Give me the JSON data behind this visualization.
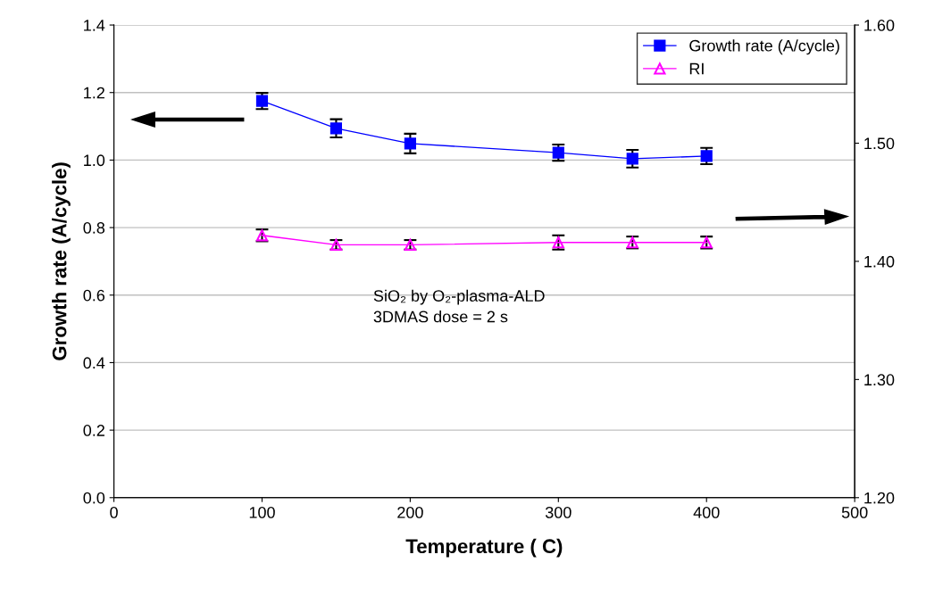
{
  "chart_data": {
    "type": "line",
    "xlabel": "Temperature ( C)",
    "ylabel": "Growth rate (A/cycle)",
    "x": [
      100,
      150,
      200,
      300,
      350,
      400
    ],
    "series": [
      {
        "name": "Growth rate (A/cycle)",
        "color": "#0000ff",
        "marker": "square",
        "values": [
          1.175,
          1.094,
          1.049,
          1.022,
          1.004,
          1.012
        ],
        "errors": [
          0.024,
          0.027,
          0.029,
          0.024,
          0.026,
          0.024
        ]
      },
      {
        "name": "RI",
        "color": "#ff00ff",
        "marker": "triangle",
        "axis": "y2",
        "values": [
          1.422,
          1.414,
          1.414,
          1.416,
          1.416,
          1.416
        ],
        "errors": [
          0.005,
          0.004,
          0.004,
          0.006,
          0.005,
          0.005
        ]
      }
    ],
    "xlim": [
      0,
      500
    ],
    "xticks": [
      0,
      100,
      200,
      300,
      400,
      500
    ],
    "ylim": [
      0,
      1.4
    ],
    "yticks": [
      {
        "value": 0,
        "label": "0.0"
      },
      {
        "value": 0.2,
        "label": "0.2"
      },
      {
        "value": 0.4,
        "label": "0.4"
      },
      {
        "value": 0.6,
        "label": "0.6"
      },
      {
        "value": 0.8,
        "label": "0.8"
      },
      {
        "value": 1.0,
        "label": "1.0"
      },
      {
        "value": 1.2,
        "label": "1.2"
      },
      {
        "value": 1.4,
        "label": "1.4"
      }
    ],
    "y2lim": [
      1.2,
      1.6
    ],
    "y2ticks": [
      {
        "value": 1.2,
        "label": "1.20"
      },
      {
        "value": 1.3,
        "label": "1.30"
      },
      {
        "value": 1.4,
        "label": "1.40"
      },
      {
        "value": 1.5,
        "label": "1.50"
      },
      {
        "value": 1.6,
        "label": "1.60"
      }
    ],
    "grid": "y",
    "legend": "top right",
    "line_style": "solid",
    "annotations": [
      "SiO₂ by O₂-plasma-ALD\n3DMAS dose = 2 s"
    ]
  }
}
